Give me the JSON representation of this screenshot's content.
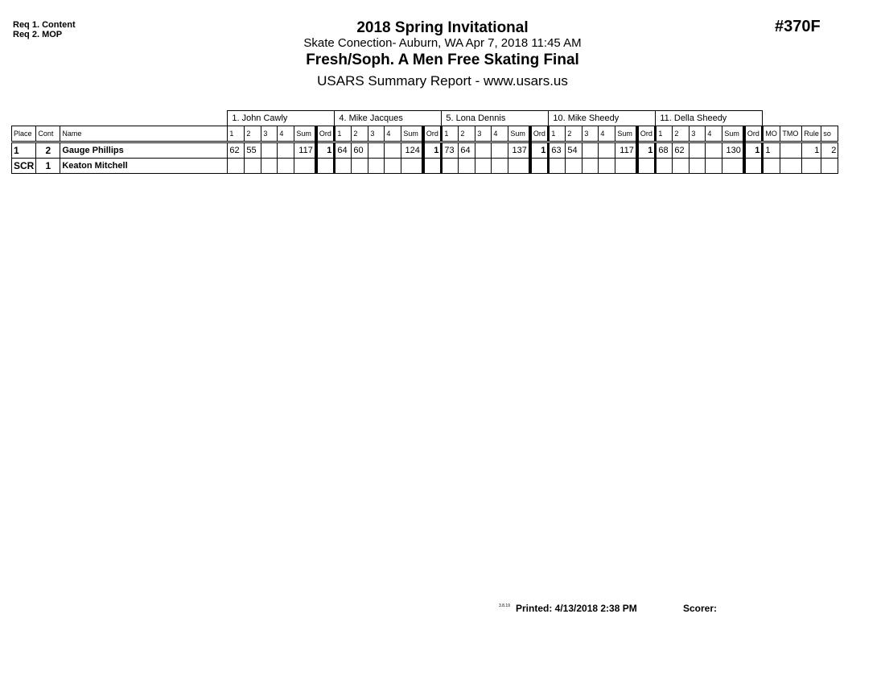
{
  "requirements": [
    "Req 1. Content",
    "Req 2. MOP"
  ],
  "event_number": "#370F",
  "title": "2018 Spring Invitational",
  "subtitle": "Skate Conection- Auburn, WA  Apr 7, 2018  11:45 AM",
  "event_name": "Fresh/Soph. A Men Free Skating Final",
  "report": "USARS Summary Report - www.usars.us",
  "judges": [
    "1.  John Cawly",
    "4.  Mike Jacques",
    "5.  Lona Dennis",
    "10.  Mike Sheedy",
    "11.  Della Sheedy"
  ],
  "headers": {
    "place": "Place",
    "cont": "Cont",
    "name": "Name",
    "judge_cols": [
      "1",
      "2",
      "3",
      "4",
      "Sum",
      "Ord"
    ],
    "mo": "MO",
    "tmo": "TMO",
    "rule": "Rule",
    "so": "so"
  },
  "rows": [
    {
      "place": "1",
      "cont": "2",
      "name": "Gauge Phillips",
      "scores": [
        [
          "62",
          "55",
          "",
          "",
          "117",
          "1"
        ],
        [
          "64",
          "60",
          "",
          "",
          "124",
          "1"
        ],
        [
          "73",
          "64",
          "",
          "",
          "137",
          "1"
        ],
        [
          "63",
          "54",
          "",
          "",
          "117",
          "1"
        ],
        [
          "68",
          "62",
          "",
          "",
          "130",
          "1"
        ]
      ],
      "mo": "1",
      "tmo": "",
      "rule": "1",
      "so": "2"
    },
    {
      "place": "SCR",
      "cont": "1",
      "name": "Keaton Mitchell",
      "scores": [
        [
          "",
          "",
          "",
          "",
          "",
          ""
        ],
        [
          "",
          "",
          "",
          "",
          "",
          ""
        ],
        [
          "",
          "",
          "",
          "",
          "",
          ""
        ],
        [
          "",
          "",
          "",
          "",
          "",
          ""
        ],
        [
          "",
          "",
          "",
          "",
          "",
          ""
        ]
      ],
      "mo": "",
      "tmo": "",
      "rule": "",
      "so": ""
    }
  ],
  "footer": {
    "version": "3.8.19",
    "printed": "Printed:  4/13/2018 2:38 PM",
    "scorer": "Scorer:"
  }
}
